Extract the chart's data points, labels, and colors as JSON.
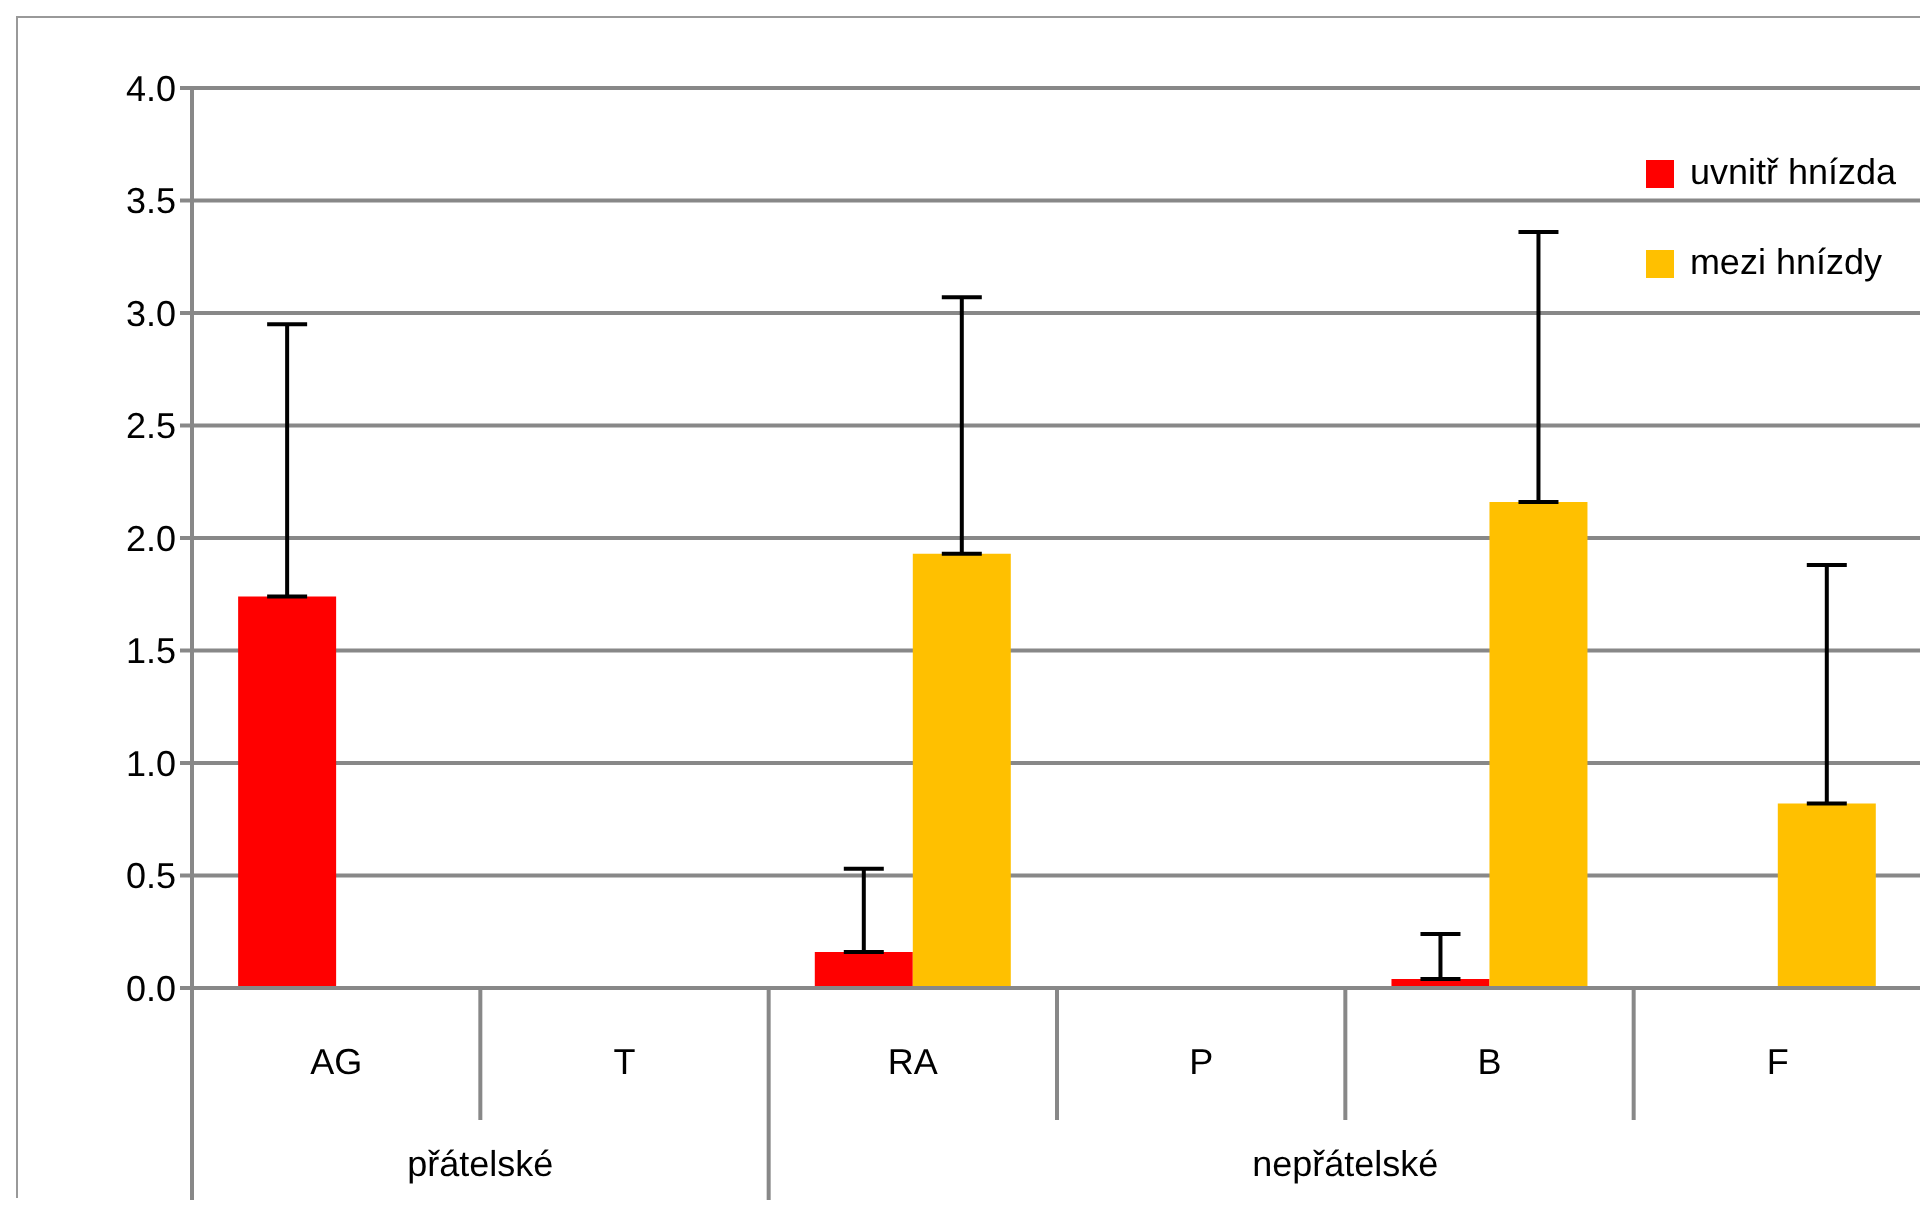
{
  "chart_data": {
    "type": "bar",
    "categories": [
      "AG",
      "T",
      "RA",
      "P",
      "B",
      "F"
    ],
    "series": [
      {
        "name": "uvnitř hnízda",
        "color": "#ff0000",
        "values": [
          1.74,
          0,
          0.16,
          0,
          0.04,
          0
        ],
        "errors": [
          [
            1.74,
            2.95
          ],
          null,
          [
            0.16,
            0.53
          ],
          null,
          [
            0.04,
            0.24
          ],
          null
        ]
      },
      {
        "name": "mezi hnízdy",
        "color": "#ffc000",
        "values": [
          0,
          0,
          1.93,
          0,
          2.16,
          0.82
        ],
        "errors": [
          null,
          null,
          [
            1.93,
            3.07
          ],
          null,
          [
            2.16,
            3.36
          ],
          [
            0.82,
            1.88
          ]
        ]
      }
    ],
    "ylim": [
      0,
      4
    ],
    "yticks": [
      {
        "value": 0,
        "label": "0.0"
      },
      {
        "value": 0.5,
        "label": "0.5"
      },
      {
        "value": 1,
        "label": "1.0"
      },
      {
        "value": 1.5,
        "label": "1.5"
      },
      {
        "value": 2,
        "label": "2.0"
      },
      {
        "value": 2.5,
        "label": "2.5"
      },
      {
        "value": 3,
        "label": "3.0"
      },
      {
        "value": 3.5,
        "label": "3.5"
      },
      {
        "value": 4,
        "label": "4.0"
      }
    ],
    "grid": "y",
    "legend": "top right",
    "annotations": [
      "přátelské",
      "nepřátelské"
    ]
  }
}
